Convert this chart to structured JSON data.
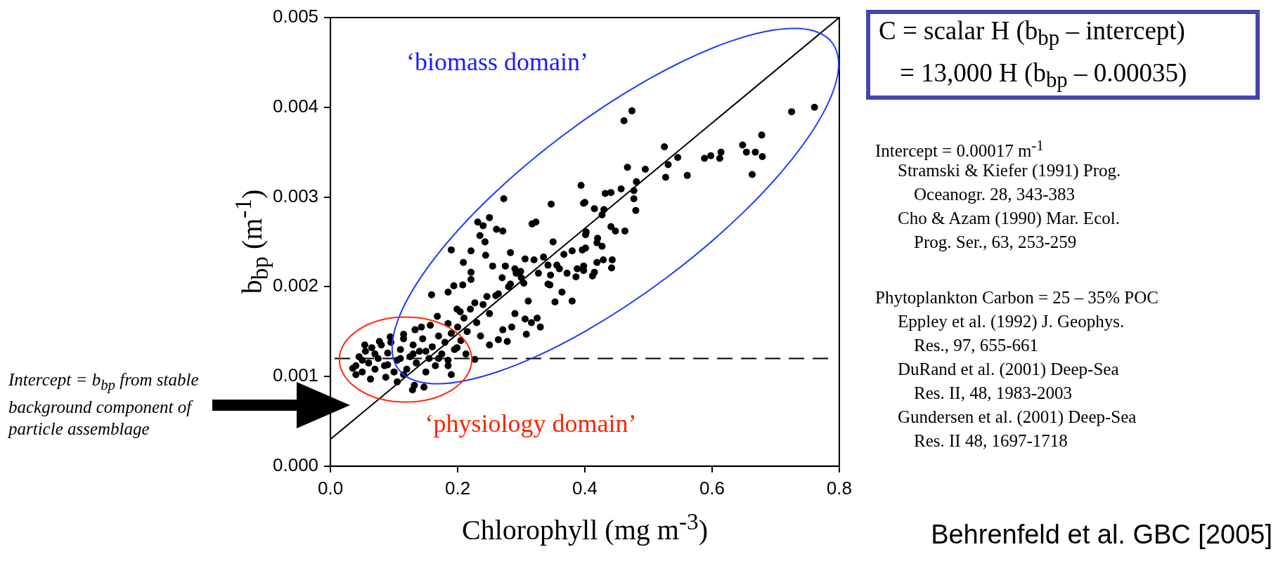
{
  "chart_data": {
    "type": "scatter",
    "xlabel": "Chlorophyll (mg m$^{-3}$)",
    "ylabel": "b$_{bp}$ (m$^{-1}$)",
    "xlim": [
      0,
      0.8
    ],
    "ylim": [
      0,
      0.005
    ],
    "xticks": [
      {
        "value": 0,
        "label": "0.0"
      },
      {
        "value": 0.2,
        "label": "0.2"
      },
      {
        "value": 0.4,
        "label": "0.4"
      },
      {
        "value": 0.6,
        "label": "0.6"
      },
      {
        "value": 0.8,
        "label": "0.8"
      }
    ],
    "yticks": [
      {
        "value": 0,
        "label": "0.000"
      },
      {
        "value": 0.001,
        "label": "0.001"
      },
      {
        "value": 0.002,
        "label": "0.002"
      },
      {
        "value": 0.003,
        "label": "0.003"
      },
      {
        "value": 0.004,
        "label": "0.004"
      },
      {
        "value": 0.005,
        "label": "0.005"
      }
    ],
    "grid": false,
    "legend": false,
    "series": [
      {
        "type": "scatter",
        "color": "#000000",
        "marker": "circle",
        "x": [
          0.474,
          0.4615,
          0.725,
          0.761,
          0.678,
          0.648,
          0.654,
          0.668,
          0.679,
          0.663,
          0.588,
          0.598,
          0.612,
          0.614,
          0.525,
          0.531,
          0.527,
          0.546,
          0.561,
          0.495,
          0.467,
          0.481,
          0.457,
          0.477,
          0.432,
          0.441,
          0.477,
          0.48,
          0.415,
          0.43,
          0.427,
          0.4,
          0.401,
          0.441,
          0.448,
          0.463,
          0.42,
          0.419,
          0.427,
          0.401,
          0.419,
          0.429,
          0.443,
          0.442,
          0.415,
          0.412,
          0.398,
          0.2725,
          0.25,
          0.2315,
          0.24,
          0.235,
          0.261,
          0.271,
          0.347,
          0.394,
          0.398,
          0.317,
          0.323,
          0.19,
          0.221,
          0.243,
          0.209,
          0.283,
          0.306,
          0.244,
          0.221,
          0.255,
          0.275,
          0.299,
          0.335,
          0.342,
          0.356,
          0.367,
          0.38,
          0.396,
          0.402,
          0.327,
          0.346,
          0.36,
          0.372,
          0.388,
          0.398,
          0.386,
          0.364,
          0.353,
          0.38,
          0.342,
          0.345,
          0.159,
          0.185,
          0.194,
          0.208,
          0.221,
          0.283,
          0.304,
          0.292,
          0.311,
          0.29,
          0.306,
          0.316,
          0.325,
          0.33,
          0.308,
          0.278,
          0.264,
          0.25,
          0.271,
          0.285,
          0.236,
          0.227,
          0.213,
          0.199,
          0.185,
          0.19,
          0.168,
          0.143,
          0.157,
          0.147,
          0.129,
          0.132,
          0.105,
          0.115,
          0.054,
          0.04,
          0.035,
          0.063,
          0.087,
          0.077,
          0.094,
          0.115,
          0.133,
          0.185,
          0.204,
          0.227,
          0.246,
          0.264,
          0.199,
          0.04,
          0.045,
          0.05,
          0.055,
          0.06,
          0.065,
          0.07,
          0.075,
          0.08,
          0.085,
          0.09,
          0.095,
          0.1,
          0.105,
          0.11,
          0.115,
          0.12,
          0.125,
          0.13,
          0.135,
          0.14,
          0.145,
          0.15,
          0.155,
          0.16,
          0.165,
          0.17,
          0.175,
          0.18,
          0.185,
          0.19,
          0.195,
          0.2,
          0.205,
          0.21,
          0.215,
          0.22,
          0.23,
          0.24,
          0.25,
          0.26,
          0.27,
          0.28,
          0.29,
          0.3,
          0.32,
          0.35,
          0.05,
          0.07,
          0.09,
          0.11,
          0.13,
          0.15,
          0.17
        ],
        "values": [
          0.00396,
          0.00385,
          0.00395,
          0.004,
          0.00369,
          0.00358,
          0.0035,
          0.0035,
          0.00345,
          0.00325,
          0.00343,
          0.00346,
          0.00343,
          0.0035,
          0.00356,
          0.00336,
          0.00322,
          0.00344,
          0.00324,
          0.00331,
          0.00333,
          0.00317,
          0.00309,
          0.00307,
          0.00304,
          0.00305,
          0.00298,
          0.00285,
          0.00287,
          0.00286,
          0.0028,
          0.00294,
          0.00258,
          0.00267,
          0.00262,
          0.00262,
          0.00254,
          0.00249,
          0.00245,
          0.00243,
          0.00227,
          0.0023,
          0.0023,
          0.00221,
          0.00216,
          0.00212,
          0.00218,
          0.00298,
          0.00277,
          0.00272,
          0.00268,
          0.00257,
          0.00264,
          0.00262,
          0.00292,
          0.00313,
          0.00293,
          0.0027,
          0.00272,
          0.00241,
          0.0024,
          0.0025,
          0.00227,
          0.00238,
          0.00231,
          0.00235,
          0.00216,
          0.00223,
          0.00223,
          0.00217,
          0.00233,
          0.00224,
          0.00224,
          0.00236,
          0.0024,
          0.00241,
          0.00261,
          0.00215,
          0.00213,
          0.0022,
          0.00215,
          0.0022,
          0.00223,
          0.00211,
          0.00194,
          0.00183,
          0.00184,
          0.00203,
          0.00202,
          0.00191,
          0.00194,
          0.00201,
          0.00202,
          0.00208,
          0.00203,
          0.00204,
          0.00215,
          0.00184,
          0.0017,
          0.00164,
          0.0016,
          0.00165,
          0.00155,
          0.00147,
          0.00139,
          0.00141,
          0.00135,
          0.00152,
          0.00155,
          0.00145,
          0.00119,
          0.00125,
          0.00132,
          0.00112,
          0.00102,
          0.00167,
          0.00155,
          0.00157,
          0.00088,
          0.00085,
          0.0009,
          0.00094,
          0.00102,
          0.00135,
          0.00102,
          0.00109,
          0.00097,
          0.00099,
          0.00139,
          0.00144,
          0.00147,
          0.00152,
          0.00159,
          0.00172,
          0.00182,
          0.00189,
          0.00192,
          0.00175,
          0.00112,
          0.00122,
          0.00105,
          0.00128,
          0.00115,
          0.00132,
          0.00108,
          0.0012,
          0.00135,
          0.00112,
          0.00126,
          0.00138,
          0.00105,
          0.00118,
          0.0013,
          0.00142,
          0.00108,
          0.00122,
          0.00135,
          0.00115,
          0.00128,
          0.00142,
          0.00105,
          0.0012,
          0.00133,
          0.00112,
          0.00145,
          0.00125,
          0.00138,
          0.00118,
          0.00148,
          0.0013,
          0.00155,
          0.0014,
          0.00165,
          0.0015,
          0.00175,
          0.0016,
          0.0018,
          0.0017,
          0.0019,
          0.0021,
          0.002,
          0.0022,
          0.0021,
          0.0023,
          0.0025,
          0.00118,
          0.00125,
          0.00113,
          0.0012,
          0.00125,
          0.00128,
          0.0012
        ]
      },
      {
        "type": "line",
        "color": "#000000",
        "marker": "none",
        "line_style": "solid",
        "x": [
          0,
          0.8
        ],
        "values": [
          0.0003,
          0.005
        ]
      }
    ],
    "ref_lines": [
      {
        "axis": "y",
        "value": 0.0012,
        "color": "#000000",
        "line_style": "dashed"
      }
    ],
    "annotations": [
      "‘biomass domain’",
      "‘physiology domain’",
      "C = scalar H (b$_{bp}$ – intercept)",
      "= 13,000 H (b$_{bp}$ – 0.00035)",
      "Intercept = 0.00017 m$^{-1}$",
      "Stramski & Kiefer (1991) Prog.",
      "Oceanogr. 28, 343-383",
      "Cho & Azam (1990) Mar. Ecol.",
      "Prog. Ser., 63, 253-259",
      "Phytoplankton Carbon = 25 – 35% POC",
      "Eppley et al. (1992) J. Geophys.",
      "Res., 97, 655-661",
      "DuRand et al. (2001) Deep-Sea",
      "Res. II, 48, 1983-2003",
      "Gundersen et al. (2001) Deep-Sea",
      "Res. II  48, 1697-1718",
      "Intercept = b$_{bp}$ from stable background component of particle assemblage",
      "Behrenfeld et al. GBC [2005]"
    ]
  }
}
